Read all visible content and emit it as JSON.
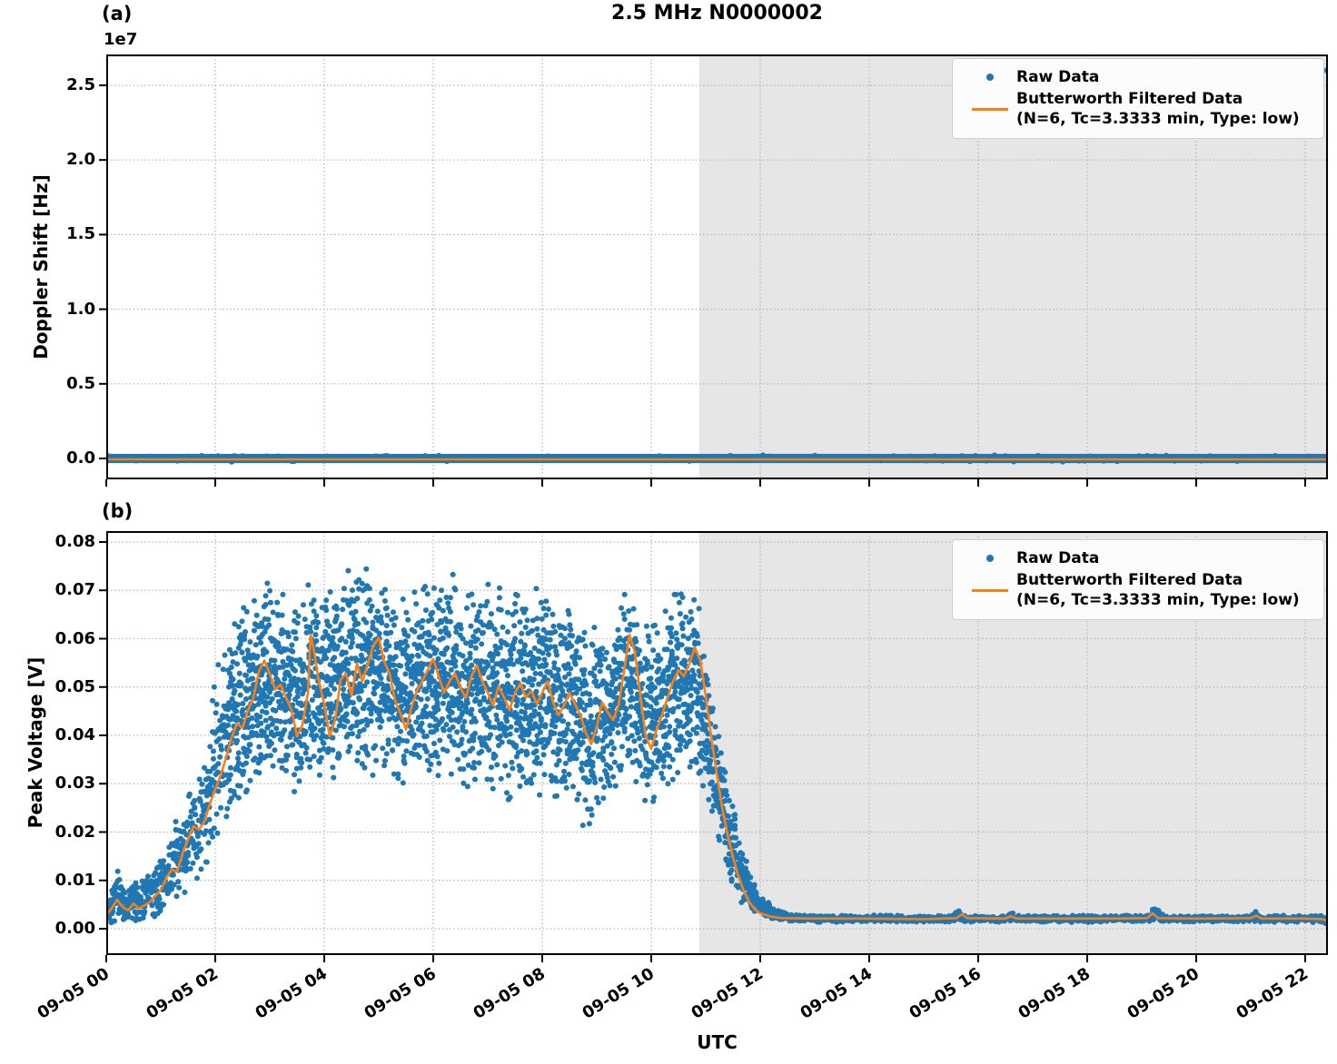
{
  "title": "2.5 MHz N0000002",
  "panels": {
    "a_label": "(a)",
    "b_label": "(b)"
  },
  "legend": {
    "raw_label": "Raw Data",
    "filtered_line1": "Butterworth Filtered Data",
    "filtered_line2": "(N=6, Tc=3.3333 min, Type: low)"
  },
  "colors": {
    "raw": "#1f77b4",
    "filtered": "#ff7f0e",
    "shaded_region": "#e6e6e6",
    "grid": "#b3b3b3",
    "spine": "#000000"
  },
  "x_axis": {
    "label": "UTC",
    "range_hours": [
      0,
      22.417
    ],
    "ticks_hours": [
      0,
      2,
      4,
      6,
      8,
      10,
      12,
      14,
      16,
      18,
      20,
      22
    ],
    "tick_labels": [
      "09-05 00",
      "09-05 02",
      "09-05 04",
      "09-05 06",
      "09-05 08",
      "09-05 10",
      "09-05 12",
      "09-05 14",
      "09-05 16",
      "09-05 18",
      "09-05 20",
      "09-05 22"
    ]
  },
  "chart_data": [
    {
      "panel": "a",
      "type": "scatter",
      "title": "2.5 MHz N0000002",
      "ylabel": "Doppler Shift [Hz]",
      "y_offset_text": "1e7",
      "ylim": [
        -1400000,
        27200000
      ],
      "yticks": [
        0,
        5000000,
        10000000,
        15000000,
        20000000,
        25000000
      ],
      "ytick_labels": [
        "0.0",
        "0.5",
        "1.0",
        "1.5",
        "2.0",
        "2.5"
      ],
      "grid": true,
      "legend_position": "upper right",
      "shaded_region_hours": [
        10.88,
        22.417
      ],
      "series": [
        {
          "name": "Raw Data",
          "style": "scatter",
          "description": "dense band hugging 0 Hz across full time range",
          "band_center_hz": 0,
          "band_halfwidth_hz": 200000,
          "outlier_points": [
            [
              22.4,
              26000000
            ]
          ]
        },
        {
          "name": "Butterworth Filtered Data (N=6, Tc=3.3333 min, Type: low)",
          "style": "line",
          "description": "flat line at ~0 Hz",
          "constant_value_hz": 0
        }
      ]
    },
    {
      "panel": "b",
      "type": "scatter+line",
      "ylabel": "Peak Voltage [V]",
      "ylim": [
        -0.00545,
        0.08225
      ],
      "yticks": [
        0,
        0.01,
        0.02,
        0.03,
        0.04,
        0.05,
        0.06,
        0.07,
        0.08
      ],
      "ytick_labels": [
        "0.00",
        "0.01",
        "0.02",
        "0.03",
        "0.04",
        "0.05",
        "0.06",
        "0.07",
        "0.08"
      ],
      "grid": true,
      "legend_position": "upper right",
      "shaded_region_hours": [
        10.88,
        22.417
      ],
      "filtered_line": [
        [
          0,
          0.0028
        ],
        [
          0.1,
          0.0042
        ],
        [
          0.2,
          0.006
        ],
        [
          0.3,
          0.0045
        ],
        [
          0.4,
          0.0038
        ],
        [
          0.5,
          0.0052
        ],
        [
          0.6,
          0.0042
        ],
        [
          0.7,
          0.0048
        ],
        [
          0.8,
          0.0055
        ],
        [
          0.9,
          0.0068
        ],
        [
          1,
          0.008
        ],
        [
          1.1,
          0.0105
        ],
        [
          1.2,
          0.0122
        ],
        [
          1.3,
          0.0118
        ],
        [
          1.4,
          0.0155
        ],
        [
          1.5,
          0.0185
        ],
        [
          1.6,
          0.0212
        ],
        [
          1.7,
          0.0205
        ],
        [
          1.8,
          0.0222
        ],
        [
          1.9,
          0.0258
        ],
        [
          2,
          0.0288
        ],
        [
          2.1,
          0.0318
        ],
        [
          2.2,
          0.0355
        ],
        [
          2.3,
          0.0395
        ],
        [
          2.4,
          0.0425
        ],
        [
          2.5,
          0.0415
        ],
        [
          2.6,
          0.0452
        ],
        [
          2.7,
          0.0478
        ],
        [
          2.8,
          0.0532
        ],
        [
          2.9,
          0.0555
        ],
        [
          3,
          0.0528
        ],
        [
          3.1,
          0.0495
        ],
        [
          3.2,
          0.0505
        ],
        [
          3.3,
          0.0478
        ],
        [
          3.4,
          0.0452
        ],
        [
          3.5,
          0.0398
        ],
        [
          3.6,
          0.0422
        ],
        [
          3.7,
          0.0488
        ],
        [
          3.75,
          0.0608
        ],
        [
          3.8,
          0.0582
        ],
        [
          3.9,
          0.0512
        ],
        [
          4,
          0.0465
        ],
        [
          4.1,
          0.0398
        ],
        [
          4.2,
          0.0432
        ],
        [
          4.3,
          0.0515
        ],
        [
          4.4,
          0.0528
        ],
        [
          4.5,
          0.0482
        ],
        [
          4.6,
          0.0548
        ],
        [
          4.7,
          0.0512
        ],
        [
          4.8,
          0.0548
        ],
        [
          4.9,
          0.0585
        ],
        [
          5,
          0.0602
        ],
        [
          5.1,
          0.0552
        ],
        [
          5.2,
          0.0528
        ],
        [
          5.3,
          0.0472
        ],
        [
          5.4,
          0.0445
        ],
        [
          5.5,
          0.0412
        ],
        [
          5.6,
          0.0458
        ],
        [
          5.7,
          0.0492
        ],
        [
          5.8,
          0.0512
        ],
        [
          5.9,
          0.0536
        ],
        [
          6,
          0.0558
        ],
        [
          6.1,
          0.0522
        ],
        [
          6.2,
          0.0488
        ],
        [
          6.3,
          0.0512
        ],
        [
          6.4,
          0.0528
        ],
        [
          6.5,
          0.0498
        ],
        [
          6.6,
          0.0478
        ],
        [
          6.7,
          0.0522
        ],
        [
          6.8,
          0.0545
        ],
        [
          6.9,
          0.0512
        ],
        [
          7,
          0.0488
        ],
        [
          7.1,
          0.0462
        ],
        [
          7.2,
          0.0502
        ],
        [
          7.3,
          0.0478
        ],
        [
          7.4,
          0.0452
        ],
        [
          7.5,
          0.0488
        ],
        [
          7.6,
          0.0508
        ],
        [
          7.7,
          0.0478
        ],
        [
          7.8,
          0.0492
        ],
        [
          7.9,
          0.0465
        ],
        [
          8,
          0.0488
        ],
        [
          8.1,
          0.0512
        ],
        [
          8.2,
          0.0468
        ],
        [
          8.3,
          0.0442
        ],
        [
          8.4,
          0.0462
        ],
        [
          8.5,
          0.0488
        ],
        [
          8.6,
          0.0465
        ],
        [
          8.7,
          0.0442
        ],
        [
          8.8,
          0.0405
        ],
        [
          8.9,
          0.0382
        ],
        [
          9,
          0.0418
        ],
        [
          9.1,
          0.0468
        ],
        [
          9.2,
          0.0448
        ],
        [
          9.3,
          0.0432
        ],
        [
          9.4,
          0.0462
        ],
        [
          9.5,
          0.0532
        ],
        [
          9.6,
          0.0608
        ],
        [
          9.7,
          0.0572
        ],
        [
          9.8,
          0.0482
        ],
        [
          9.9,
          0.0398
        ],
        [
          10,
          0.0372
        ],
        [
          10.1,
          0.0412
        ],
        [
          10.2,
          0.0442
        ],
        [
          10.3,
          0.0478
        ],
        [
          10.4,
          0.0512
        ],
        [
          10.5,
          0.0535
        ],
        [
          10.6,
          0.0522
        ],
        [
          10.7,
          0.0548
        ],
        [
          10.8,
          0.0582
        ],
        [
          10.9,
          0.0555
        ],
        [
          11,
          0.0482
        ],
        [
          11.1,
          0.0398
        ],
        [
          11.2,
          0.0322
        ],
        [
          11.3,
          0.0252
        ],
        [
          11.4,
          0.0195
        ],
        [
          11.5,
          0.0148
        ],
        [
          11.6,
          0.0108
        ],
        [
          11.7,
          0.0078
        ],
        [
          11.8,
          0.0055
        ],
        [
          11.9,
          0.004
        ],
        [
          12,
          0.0032
        ],
        [
          12.2,
          0.0025
        ],
        [
          12.4,
          0.0022
        ],
        [
          13,
          0.0021
        ],
        [
          14,
          0.0021
        ],
        [
          15,
          0.002
        ],
        [
          15.6,
          0.0022
        ],
        [
          15.7,
          0.003
        ],
        [
          15.8,
          0.0022
        ],
        [
          16.5,
          0.0021
        ],
        [
          16.6,
          0.0026
        ],
        [
          16.7,
          0.0021
        ],
        [
          17.5,
          0.0021
        ],
        [
          18.5,
          0.0021
        ],
        [
          19.1,
          0.0022
        ],
        [
          19.2,
          0.0032
        ],
        [
          19.3,
          0.0022
        ],
        [
          20,
          0.0021
        ],
        [
          21,
          0.0022
        ],
        [
          21.1,
          0.0027
        ],
        [
          21.2,
          0.0021
        ],
        [
          22,
          0.0021
        ],
        [
          22.3,
          0.002
        ],
        [
          22.42,
          0.0016
        ]
      ],
      "raw_envelope": [
        [
          0,
          0.0008,
          0.0062
        ],
        [
          0.2,
          0.001,
          0.0128
        ],
        [
          0.35,
          0.0008,
          0.0092
        ],
        [
          0.5,
          0.0012,
          0.0098
        ],
        [
          0.8,
          0.0015,
          0.0125
        ],
        [
          1,
          0.0022,
          0.0165
        ],
        [
          1.2,
          0.0035,
          0.0205
        ],
        [
          1.5,
          0.0065,
          0.0285
        ],
        [
          1.8,
          0.0105,
          0.0365
        ],
        [
          2,
          0.014,
          0.055
        ],
        [
          2.2,
          0.018,
          0.061
        ],
        [
          2.5,
          0.025,
          0.068
        ],
        [
          2.8,
          0.03,
          0.0718
        ],
        [
          3,
          0.0305,
          0.0725
        ],
        [
          3.3,
          0.028,
          0.07
        ],
        [
          3.6,
          0.026,
          0.0688
        ],
        [
          3.75,
          0.032,
          0.074
        ],
        [
          4,
          0.027,
          0.0705
        ],
        [
          4.3,
          0.03,
          0.0762
        ],
        [
          4.6,
          0.031,
          0.0778
        ],
        [
          5,
          0.03,
          0.0742
        ],
        [
          5.4,
          0.0265,
          0.0708
        ],
        [
          5.8,
          0.03,
          0.0728
        ],
        [
          6.2,
          0.028,
          0.0742
        ],
        [
          6.6,
          0.0275,
          0.0722
        ],
        [
          7,
          0.026,
          0.0738
        ],
        [
          7.4,
          0.0255,
          0.0702
        ],
        [
          7.8,
          0.0262,
          0.0722
        ],
        [
          8.2,
          0.0242,
          0.0698
        ],
        [
          8.6,
          0.0228,
          0.0682
        ],
        [
          8.9,
          0.017,
          0.064
        ],
        [
          9.2,
          0.0235,
          0.0668
        ],
        [
          9.6,
          0.032,
          0.0738
        ],
        [
          9.9,
          0.0225,
          0.0638
        ],
        [
          10.2,
          0.0268,
          0.0672
        ],
        [
          10.5,
          0.0295,
          0.07
        ],
        [
          10.8,
          0.033,
          0.073
        ],
        [
          11,
          0.025,
          0.06
        ],
        [
          11.2,
          0.016,
          0.048
        ],
        [
          11.4,
          0.01,
          0.033
        ],
        [
          11.6,
          0.0058,
          0.021
        ],
        [
          11.8,
          0.0035,
          0.012
        ],
        [
          12,
          0.0025,
          0.007
        ],
        [
          12.3,
          0.0018,
          0.004
        ],
        [
          12.6,
          0.0014,
          0.0032
        ],
        [
          13,
          0.0013,
          0.0029
        ],
        [
          15.5,
          0.0013,
          0.0028
        ],
        [
          15.65,
          0.0015,
          0.0045
        ],
        [
          15.8,
          0.0013,
          0.0028
        ],
        [
          16.5,
          0.0013,
          0.0028
        ],
        [
          16.6,
          0.0014,
          0.0036
        ],
        [
          16.7,
          0.0013,
          0.0028
        ],
        [
          19.1,
          0.0013,
          0.0028
        ],
        [
          19.25,
          0.0015,
          0.0048
        ],
        [
          19.4,
          0.0013,
          0.0028
        ],
        [
          21,
          0.0013,
          0.0028
        ],
        [
          21.1,
          0.0014,
          0.0038
        ],
        [
          21.2,
          0.0013,
          0.0028
        ],
        [
          22.3,
          0.0013,
          0.0028
        ],
        [
          22.42,
          0.0004,
          0.0026
        ]
      ],
      "raw_scatter": {
        "step_hours": 0.015,
        "segments": [
          {
            "from": 0,
            "to": 2.2,
            "n": 3
          },
          {
            "from": 2.2,
            "to": 10.88,
            "n": 5
          },
          {
            "from": 10.88,
            "to": 12.5,
            "n": 4
          },
          {
            "from": 12.5,
            "to": 22.417,
            "n": 2
          }
        ]
      }
    }
  ]
}
